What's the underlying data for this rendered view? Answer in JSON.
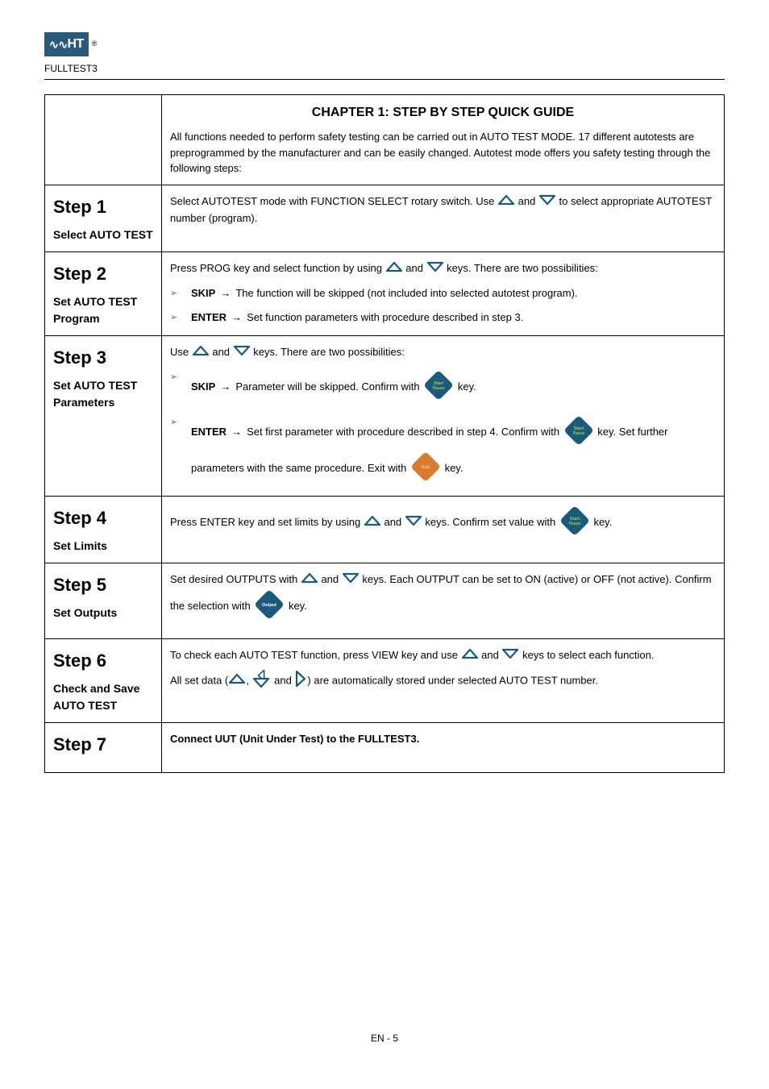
{
  "logo_text": "HT",
  "product_name": "FULLTEST3",
  "chapter_title": "CHAPTER 1: STEP BY STEP QUICK GUIDE",
  "chapter_body": "All functions needed to perform safety testing can be carried out in AUTO TEST MODE. 17 different autotests are preprogrammed by the manufacturer and can be easily changed. Autotest mode offers you safety testing through the following steps:",
  "colors": {
    "blue": "#1b5a7a",
    "orange": "#d97a2e",
    "white": "#ffffff",
    "grey": "#7a7a7a"
  },
  "rows": [
    {
      "left": [
        {
          "type": "title",
          "text": "Step 1"
        },
        {
          "type": "sub",
          "text": "Select AUTO TEST"
        }
      ],
      "right": {
        "lines": [
          {
            "parts": [
              {
                "t": "text",
                "v": "Select AUTOTEST mode with FUNCTION SELECT rotary switch. Use "
              },
              {
                "t": "icon",
                "v": "tri-up"
              },
              {
                "t": "text",
                "v": " and "
              },
              {
                "t": "icon",
                "v": "tri-down"
              },
              {
                "t": "text",
                "v": " to select appropriate AUTOTEST number (program)."
              }
            ]
          }
        ]
      }
    },
    {
      "left": [
        {
          "type": "title",
          "text": "Step 2"
        },
        {
          "type": "sub",
          "text": "Set AUTO TEST Program"
        }
      ],
      "right": {
        "lines": [
          {
            "parts": [
              {
                "t": "text",
                "v": "Press PROG key and select function by using "
              },
              {
                "t": "icon",
                "v": "tri-up"
              },
              {
                "t": "text",
                "v": " and "
              },
              {
                "t": "icon",
                "v": "tri-down"
              },
              {
                "t": "text",
                "v": " keys. There are two possibilities:"
              }
            ]
          }
        ],
        "sublist": [
          {
            "label": "SKIP",
            "text": "The function will be skipped (not included into selected autotest program)."
          },
          {
            "label": "ENTER",
            "text": "Set function parameters with procedure described in step 3."
          }
        ]
      }
    },
    {
      "left": [
        {
          "type": "title",
          "text": "Step 3"
        },
        {
          "type": "sub",
          "text": "Set AUTO TEST Parameters"
        }
      ],
      "right": {
        "lines": [
          {
            "parts": [
              {
                "t": "text",
                "v": "Use ",
                "class": ""
              },
              {
                "t": "icon",
                "v": "tri-up"
              },
              {
                "t": "text",
                "v": " and "
              },
              {
                "t": "icon",
                "v": "tri-down"
              },
              {
                "t": "text",
                "v": " keys. There are two possibilities:"
              }
            ]
          }
        ],
        "sublist": [
          {
            "label": "SKIP",
            "text_parts": [
              {
                "t": "text",
                "v": "Parameter will be skipped. Confirm with "
              },
              {
                "t": "icon",
                "v": "diamond-start"
              },
              {
                "t": "text",
                "v": " key."
              }
            ]
          },
          {
            "label": "ENTER",
            "text_parts": [
              {
                "t": "text",
                "v": "Set first parameter with procedure described in step 4. Confirm with "
              },
              {
                "t": "icon",
                "v": "diamond-start"
              },
              {
                "t": "text",
                "v": " key. Set further parameters with the same procedure. Exit with "
              },
              {
                "t": "icon",
                "v": "diamond-exit"
              },
              {
                "t": "text",
                "v": " key."
              }
            ]
          }
        ]
      }
    },
    {
      "left": [
        {
          "type": "title",
          "text": "Step 4"
        },
        {
          "type": "sub",
          "text": "Set Limits"
        }
      ],
      "right": {
        "lines": [
          {
            "parts": [
              {
                "t": "text",
                "v": "Press ENTER key and set limits by using "
              },
              {
                "t": "icon",
                "v": "tri-up"
              },
              {
                "t": "text",
                "v": " and "
              },
              {
                "t": "icon",
                "v": "tri-down"
              },
              {
                "t": "text",
                "v": " keys. Confirm set value with "
              },
              {
                "t": "icon",
                "v": "diamond-start"
              },
              {
                "t": "text",
                "v": " key."
              }
            ]
          }
        ]
      }
    },
    {
      "left": [
        {
          "type": "title",
          "text": "Step 5"
        },
        {
          "type": "sub",
          "text": "Set Outputs"
        }
      ],
      "right": {
        "lines": [
          {
            "parts": [
              {
                "t": "text",
                "v": "Set desired OUTPUTS with "
              },
              {
                "t": "icon",
                "v": "tri-up"
              },
              {
                "t": "text",
                "v": " and "
              },
              {
                "t": "icon",
                "v": "tri-down"
              },
              {
                "t": "text",
                "v": " keys. Each OUTPUT can be set to ON (active) or OFF (not active). Confirm the selection with "
              },
              {
                "t": "icon",
                "v": "diamond-output"
              },
              {
                "t": "text",
                "v": " key."
              }
            ]
          }
        ]
      }
    },
    {
      "left": [
        {
          "type": "title",
          "text": "Step 6"
        },
        {
          "type": "sub",
          "text": "Check and Save AUTO TEST"
        }
      ],
      "right": {
        "lines": [
          {
            "parts": [
              {
                "t": "text",
                "v": "To check each AUTO TEST function, press VIEW key and use "
              },
              {
                "t": "icon",
                "v": "tri-up"
              },
              {
                "t": "text",
                "v": " and "
              },
              {
                "t": "icon",
                "v": "tri-down"
              },
              {
                "t": "text",
                "v": " keys to select each function."
              }
            ]
          },
          {
            "parts": [
              {
                "t": "text",
                "v": "All set data ("
              },
              {
                "t": "icon",
                "v": "tri-up"
              },
              {
                "t": "text",
                "v": ", "
              },
              {
                "t": "icon",
                "v": "tri-left-right-stack"
              },
              {
                "t": "text",
                "v": " and "
              },
              {
                "t": "icon",
                "v": "tri-right"
              },
              {
                "t": "text",
                "v": ") are automatically stored under selected AUTO TEST number."
              }
            ]
          }
        ]
      }
    },
    {
      "left": [
        {
          "type": "title",
          "text": "Step 7"
        }
      ],
      "right": {
        "lines": [
          {
            "parts": [
              {
                "t": "text",
                "v": "Connect UUT (Unit Under Test) to the FULLTEST3.",
                "class": "bold"
              }
            ]
          }
        ]
      }
    }
  ],
  "footer": "EN - 5"
}
